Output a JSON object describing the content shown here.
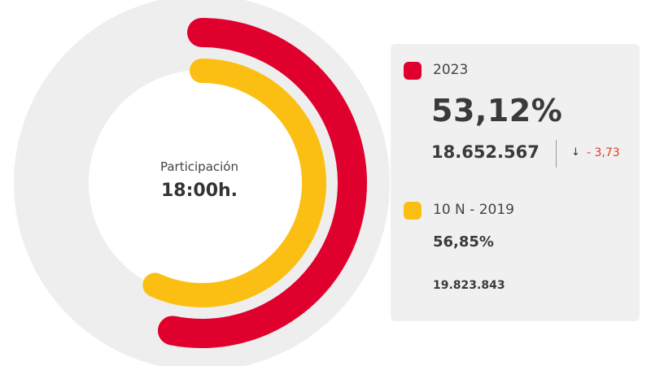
{
  "colors": {
    "track": "#eeeeee",
    "current": "#e0002e",
    "previous": "#fbbf14",
    "delta": "#e04020"
  },
  "center": {
    "label": "Participación",
    "time": "18:00h."
  },
  "current": {
    "year_label": "2023",
    "percent_text": "53,12%",
    "count_text": "18.652.567",
    "delta_icon": "arrow-down-icon",
    "delta_text": "- 3,73"
  },
  "previous": {
    "year_label": "10 N - 2019",
    "percent_text": "56,85%",
    "count_text": "19.823.843"
  },
  "chart_data": {
    "type": "pie",
    "style": "radial-bar",
    "title": "Participación",
    "subtitle": "18:00h.",
    "max": 100,
    "series": [
      {
        "name": "2023",
        "value": 53.12,
        "color": "#e0002e"
      },
      {
        "name": "10 N - 2019",
        "value": 56.85,
        "color": "#fbbf14"
      }
    ]
  }
}
